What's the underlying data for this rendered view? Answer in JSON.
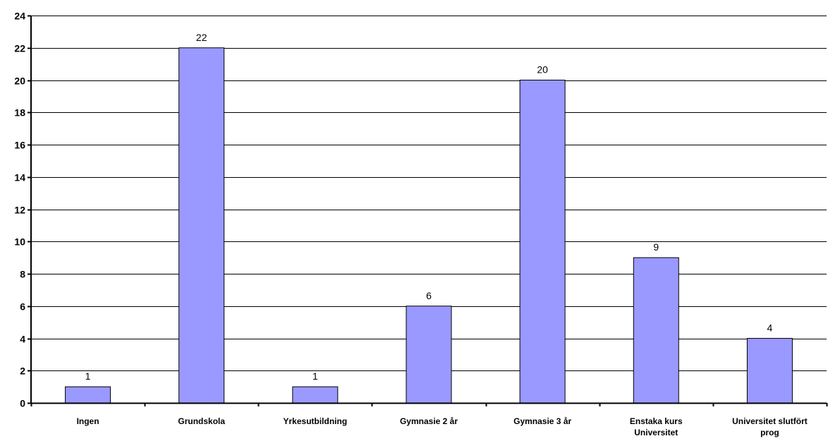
{
  "chart_data": {
    "type": "bar",
    "categories": [
      "Ingen",
      "Grundskola",
      "Yrkesutbildning",
      "Gymnasie 2 år",
      "Gymnasie 3 år",
      "Enstaka kurs\nUniversitet",
      "Universitet slutfört\nprog"
    ],
    "values": [
      1,
      22,
      1,
      6,
      20,
      9,
      4
    ],
    "data_labels": [
      "1",
      "22",
      "1",
      "6",
      "20",
      "9",
      "4"
    ],
    "ylim": [
      0,
      24
    ],
    "yticks": [
      0,
      2,
      4,
      6,
      8,
      10,
      12,
      14,
      16,
      18,
      20,
      22,
      24
    ],
    "grid": true,
    "bar_color": "#9999ff",
    "title": "",
    "xlabel": "",
    "ylabel": ""
  }
}
